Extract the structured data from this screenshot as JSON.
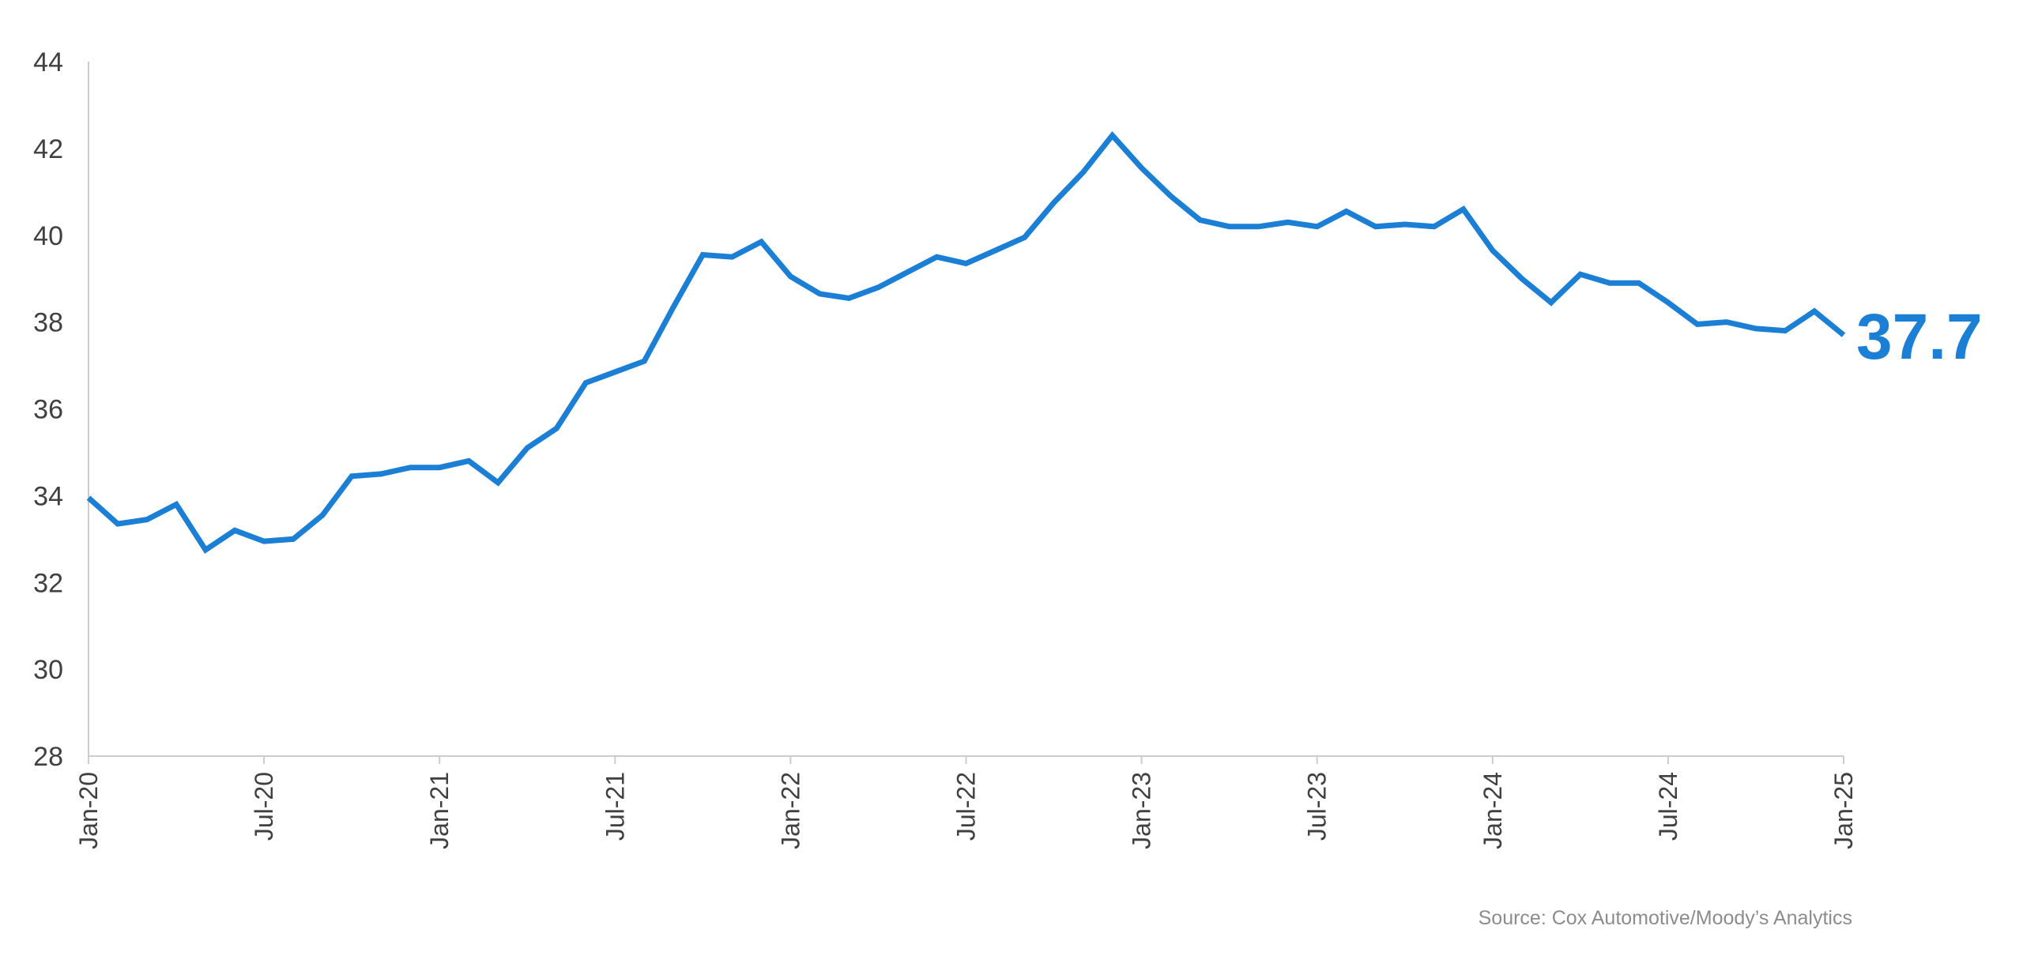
{
  "chart_data": {
    "type": "line",
    "title": "",
    "xlabel": "",
    "ylabel": "",
    "ylim": [
      28,
      44
    ],
    "yticks": [
      28,
      30,
      32,
      34,
      36,
      38,
      40,
      42,
      44
    ],
    "xticks": [
      "Jan-20",
      "Jul-20",
      "Jan-21",
      "Jul-21",
      "Jan-22",
      "Jul-22",
      "Jan-23",
      "Jul-23",
      "Jan-24",
      "Jul-24",
      "Jan-25"
    ],
    "grid": false,
    "line_color": "#1b7fd6",
    "axis_color": "#cccccc",
    "series": [
      {
        "x": [
          "Jan-20",
          "Feb-20",
          "Mar-20",
          "Apr-20",
          "May-20",
          "Jun-20",
          "Jul-20",
          "Aug-20",
          "Sep-20",
          "Oct-20",
          "Nov-20",
          "Dec-20",
          "Jan-21",
          "Feb-21",
          "Mar-21",
          "Apr-21",
          "May-21",
          "Jun-21",
          "Jul-21",
          "Aug-21",
          "Sep-21",
          "Oct-21",
          "Nov-21",
          "Dec-21",
          "Jan-22",
          "Feb-22",
          "Mar-22",
          "Apr-22",
          "May-22",
          "Jun-22",
          "Jul-22",
          "Aug-22",
          "Sep-22",
          "Oct-22",
          "Nov-22",
          "Dec-22",
          "Jan-23",
          "Feb-23",
          "Mar-23",
          "Apr-23",
          "May-23",
          "Jun-23",
          "Jul-23",
          "Aug-23",
          "Sep-23",
          "Oct-23",
          "Nov-23",
          "Dec-23",
          "Jan-24",
          "Feb-24",
          "Mar-24",
          "Apr-24",
          "May-24",
          "Jun-24",
          "Jul-24",
          "Aug-24",
          "Sep-24",
          "Oct-24",
          "Nov-24",
          "Dec-24",
          "Jan-25"
        ],
        "values": [
          33.95,
          33.35,
          33.45,
          33.8,
          32.75,
          33.2,
          32.95,
          33.0,
          33.55,
          34.45,
          34.5,
          34.65,
          34.65,
          34.8,
          34.3,
          35.1,
          35.55,
          36.6,
          36.85,
          37.1,
          38.35,
          39.55,
          39.5,
          39.85,
          39.05,
          38.65,
          38.55,
          38.8,
          39.15,
          39.5,
          39.35,
          39.65,
          39.95,
          40.75,
          41.45,
          42.3,
          41.55,
          40.9,
          40.35,
          40.2,
          40.2,
          40.3,
          40.2,
          40.55,
          40.2,
          40.25,
          40.2,
          40.6,
          39.65,
          39.0,
          38.45,
          39.1,
          38.9,
          38.9,
          38.45,
          37.95,
          38.0,
          37.85,
          37.8,
          38.25,
          37.7
        ]
      }
    ],
    "end_label": "37.7",
    "source": "Source: Cox Automotive/Moody’s Analytics"
  }
}
